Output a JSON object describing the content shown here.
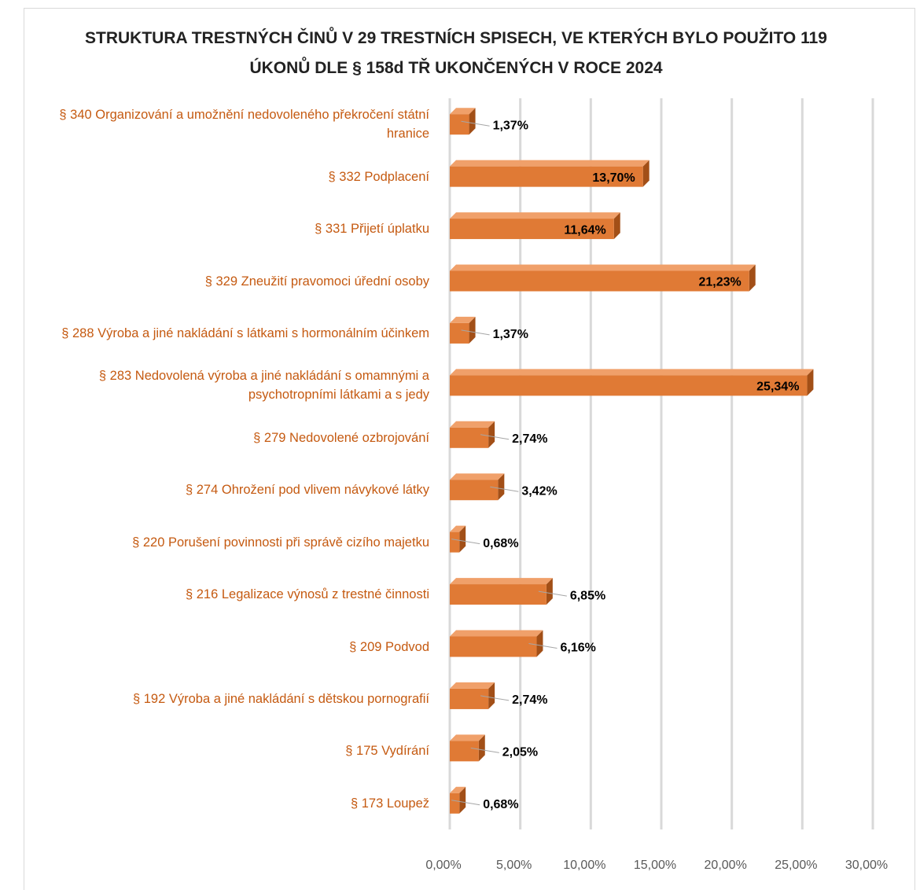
{
  "chart_data": {
    "type": "bar",
    "orientation": "horizontal",
    "title": "STRUKTURA TRESTNÝCH ČINŮ V 29 TRESTNÍCH SPISECH, VE KTERÝCH BYLO POUŽITO 119 ÚKONŮ DLE § 158d TŘ UKONČENÝCH V ROCE 2024",
    "categories": [
      "§ 340 Organizování a umožnění nedovoleného překročení státní hranice",
      "§ 332 Podplacení",
      "§ 331 Přijetí úplatku",
      "§ 329 Zneužití pravomoci úřední osoby",
      "§ 288 Výroba a jiné nakládání s látkami s hormonálním účinkem",
      "§ 283 Nedovolená výroba a jiné nakládání s omamnými a psychotropními látkami a s jedy",
      "§ 279 Nedovolené ozbrojování",
      "§ 274 Ohrožení pod vlivem návykové látky",
      "§ 220 Porušení povinnosti při správě cizího majetku",
      "§ 216 Legalizace výnosů z trestné činnosti",
      "§ 209 Podvod",
      "§ 192 Výroba a jiné nakládání s dětskou pornografií",
      "§ 175 Vydírání",
      "§ 173 Loupež"
    ],
    "values": [
      1.37,
      13.7,
      11.64,
      21.23,
      1.37,
      25.34,
      2.74,
      3.42,
      0.68,
      6.85,
      6.16,
      2.74,
      2.05,
      0.68
    ],
    "value_labels": [
      "1,37%",
      "13,70%",
      "11,64%",
      "21,23%",
      "1,37%",
      "25,34%",
      "2,74%",
      "3,42%",
      "0,68%",
      "6,85%",
      "6,16%",
      "2,74%",
      "2,05%",
      "0,68%"
    ],
    "color": "#e07a35",
    "xlim": [
      0,
      30
    ],
    "xticks": [
      {
        "value": 0,
        "label": "0,00%"
      },
      {
        "value": 5,
        "label": "5,00%"
      },
      {
        "value": 10,
        "label": "10,00%"
      },
      {
        "value": 15,
        "label": "15,00%"
      },
      {
        "value": 20,
        "label": "20,00%"
      },
      {
        "value": 25,
        "label": "25,00%"
      },
      {
        "value": 30,
        "label": "30,00%"
      }
    ],
    "grid": true
  }
}
